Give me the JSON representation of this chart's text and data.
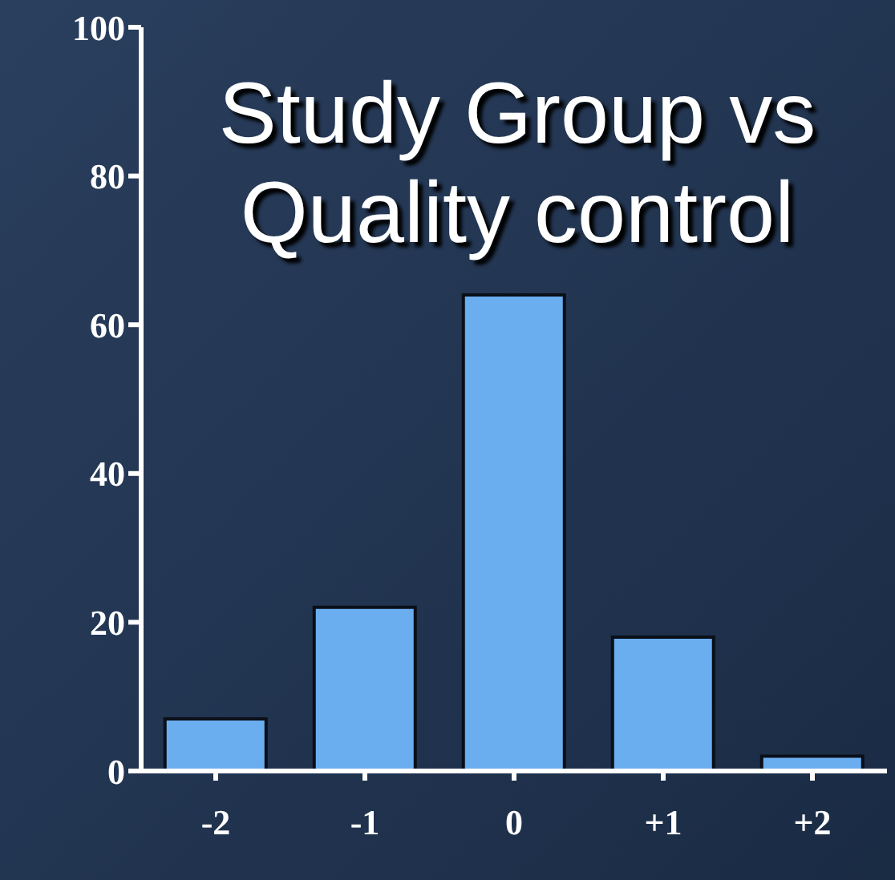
{
  "chart_data": {
    "type": "bar",
    "title": "Study Group vs Quality control",
    "categories": [
      "-2",
      "-1",
      "0",
      "+1",
      "+2"
    ],
    "values": [
      7,
      22,
      64,
      18,
      2
    ],
    "color": "#6aaef0",
    "ylim": [
      0,
      100
    ],
    "yticks": [
      0,
      20,
      40,
      60,
      80,
      100
    ],
    "grid": false,
    "legend": false
  }
}
